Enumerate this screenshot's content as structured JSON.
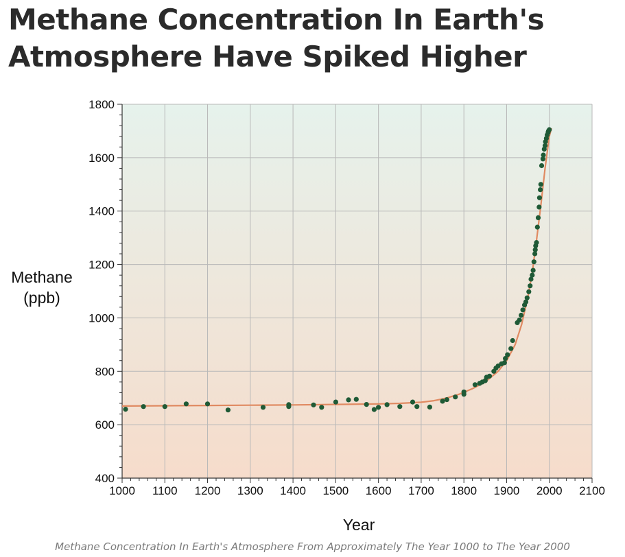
{
  "page": {
    "headline": "Methane Concentration In Earth's Atmosphere Have Spiked Higher",
    "caption": "Methane Concentration In Earth's Atmosphere From Approximately The Year 1000 to The Year 2000"
  },
  "chart_data": {
    "type": "scatter",
    "title": "",
    "xlabel": "Year",
    "ylabel": "Methane (ppb)",
    "ylabel_lines": [
      "Methane",
      "(ppb)"
    ],
    "xlim": [
      1000,
      2100
    ],
    "ylim": [
      400,
      1800
    ],
    "xticks": [
      1000,
      1100,
      1200,
      1300,
      1400,
      1500,
      1600,
      1700,
      1800,
      1900,
      2000,
      2100
    ],
    "xtick_labels": [
      "1000",
      "1100",
      "1200",
      "1300",
      "1400",
      "1500",
      "1600",
      "1700",
      "1800",
      "1900",
      "2000",
      "2100"
    ],
    "yticks": [
      400,
      600,
      800,
      1000,
      1200,
      1400,
      1600,
      1800
    ],
    "ytick_labels": [
      "400",
      "600",
      "800",
      "1000",
      "1200",
      "1400",
      "1600",
      "1800"
    ],
    "grid": true,
    "colors": {
      "points": "#1f5a36",
      "trend": "#e08a62",
      "gradient_top": "#e6f2ec",
      "gradient_bottom": "#f6dccb",
      "grid": "#b8b8b8",
      "axis": "#333333"
    },
    "series": [
      {
        "kind": "points",
        "x": [
          1008,
          1050,
          1100,
          1150,
          1200,
          1248,
          1330,
          1390,
          1390,
          1448,
          1467,
          1500,
          1530,
          1548,
          1572,
          1590,
          1600,
          1620,
          1650,
          1680,
          1690,
          1720,
          1750,
          1760,
          1780,
          1800,
          1800,
          1826,
          1837,
          1843,
          1850,
          1853,
          1860,
          1870,
          1875,
          1880,
          1888,
          1895,
          1897,
          1902,
          1910,
          1914,
          1925,
          1930,
          1934,
          1938,
          1942,
          1945,
          1948,
          1952,
          1955,
          1957,
          1960,
          1962,
          1964,
          1966,
          1967,
          1968,
          1970,
          1972,
          1974,
          1976,
          1977,
          1979,
          1980,
          1982,
          1985,
          1986,
          1988,
          1990,
          1991,
          1993,
          1995,
          1997,
          1998,
          2000
        ],
        "y": [
          658,
          668,
          668,
          678,
          678,
          655,
          665,
          668,
          675,
          674,
          665,
          685,
          693,
          695,
          676,
          657,
          665,
          675,
          668,
          685,
          668,
          666,
          688,
          694,
          704,
          714,
          723,
          750,
          755,
          760,
          765,
          778,
          782,
          800,
          812,
          820,
          828,
          832,
          848,
          862,
          885,
          915,
          982,
          992,
          1010,
          1030,
          1048,
          1060,
          1075,
          1098,
          1120,
          1145,
          1160,
          1178,
          1210,
          1240,
          1255,
          1270,
          1282,
          1340,
          1375,
          1415,
          1450,
          1480,
          1500,
          1570,
          1595,
          1610,
          1632,
          1645,
          1660,
          1672,
          1685,
          1695,
          1700,
          1705
        ]
      },
      {
        "kind": "trend",
        "x": [
          1000,
          1100,
          1200,
          1300,
          1400,
          1500,
          1600,
          1650,
          1700,
          1730,
          1760,
          1790,
          1820,
          1850,
          1880,
          1900,
          1920,
          1935,
          1950,
          1960,
          1970,
          1980,
          1990,
          2000,
          2005
        ],
        "y": [
          670,
          671,
          672,
          673,
          674,
          676,
          678,
          680,
          684,
          690,
          700,
          715,
          735,
          760,
          800,
          840,
          900,
          975,
          1080,
          1170,
          1290,
          1420,
          1560,
          1680,
          1710
        ]
      }
    ]
  }
}
